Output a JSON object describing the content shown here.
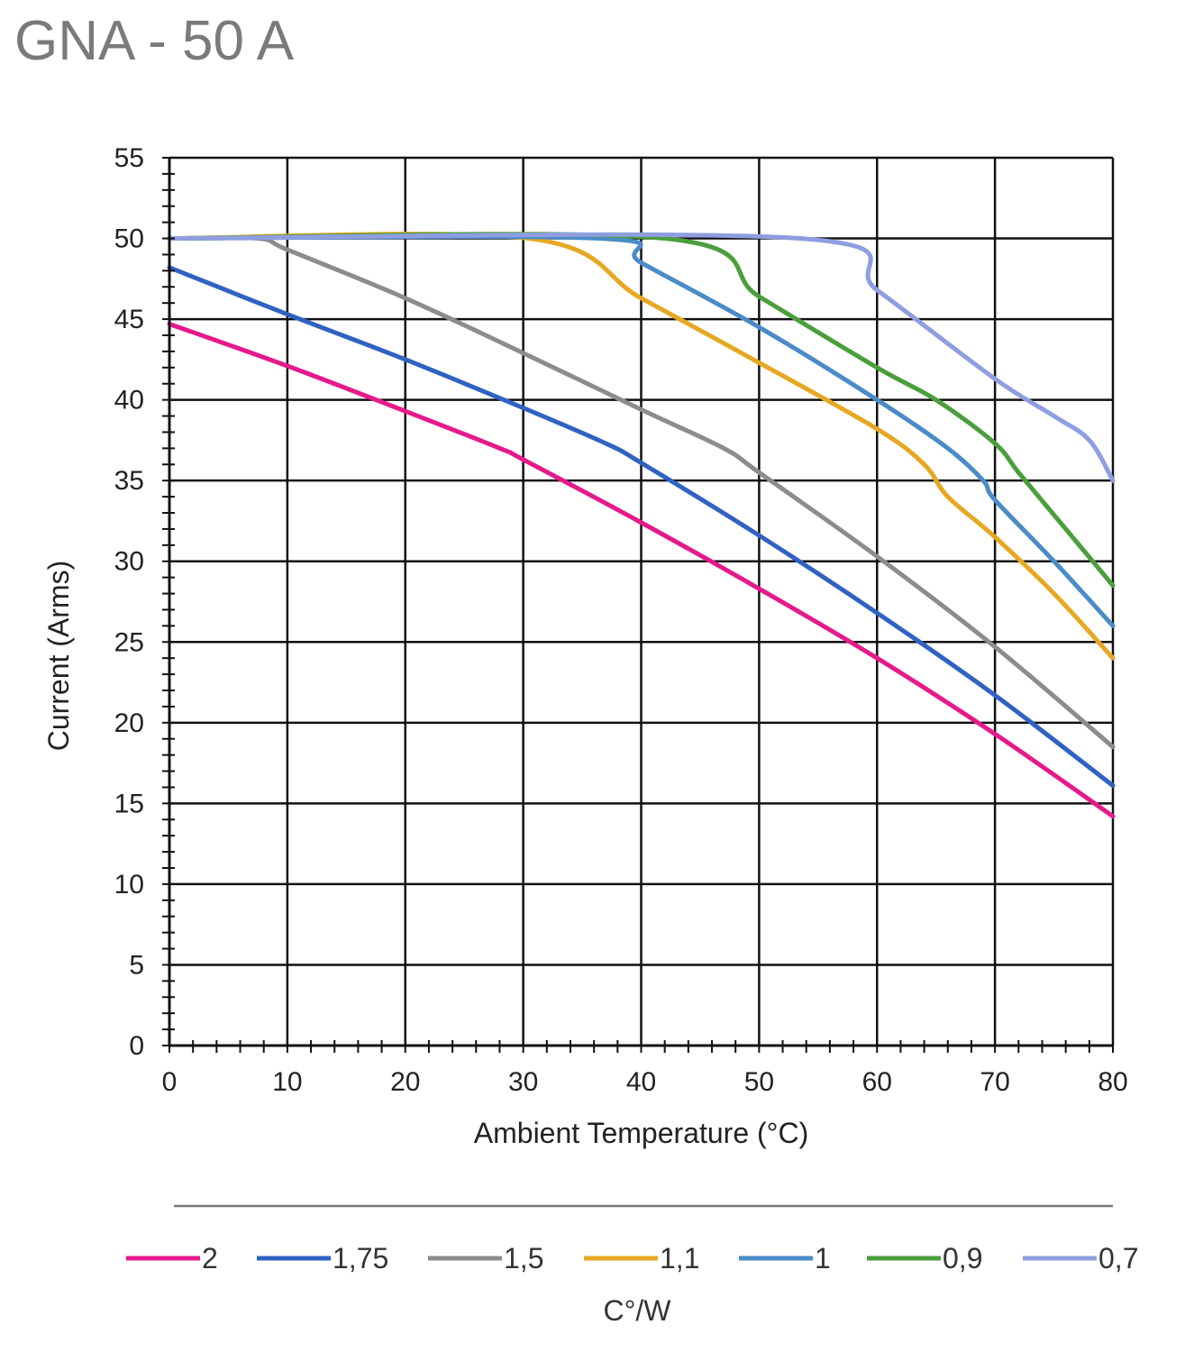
{
  "title": "GNA - 50 A",
  "chart_data": {
    "type": "line",
    "title": "GNA - 50 A",
    "xlabel": "Ambient Temperature (°C)",
    "ylabel": "Current (Arms)",
    "xlim": [
      0,
      80
    ],
    "ylim": [
      0,
      55
    ],
    "xticks": [
      0,
      10,
      20,
      30,
      40,
      50,
      60,
      70,
      80
    ],
    "yticks": [
      0,
      5,
      10,
      15,
      20,
      25,
      30,
      35,
      40,
      45,
      50,
      55
    ],
    "grid": true,
    "legend_position": "bottom",
    "legend_title": "C°/W",
    "series": [
      {
        "name": "2",
        "color": "#e6198c",
        "points": [
          [
            0,
            44.7
          ],
          [
            10,
            42.1
          ],
          [
            20,
            39.3
          ],
          [
            28,
            37
          ],
          [
            30,
            36.3
          ],
          [
            40,
            32.4
          ],
          [
            50,
            28.3
          ],
          [
            60,
            24
          ],
          [
            70,
            19.3
          ],
          [
            80,
            14.2
          ]
        ]
      },
      {
        "name": "1,75",
        "color": "#2f62c2",
        "points": [
          [
            0,
            48.2
          ],
          [
            10,
            45.3
          ],
          [
            20,
            42.5
          ],
          [
            30,
            39.5
          ],
          [
            37,
            37.3
          ],
          [
            40,
            36.1
          ],
          [
            50,
            31.6
          ],
          [
            60,
            26.8
          ],
          [
            70,
            21.7
          ],
          [
            80,
            16.1
          ]
        ]
      },
      {
        "name": "1,5",
        "color": "#8c8c8c",
        "points": [
          [
            0,
            50
          ],
          [
            7.5,
            50
          ],
          [
            10,
            49.3
          ],
          [
            20,
            46.3
          ],
          [
            30,
            42.9
          ],
          [
            40,
            39.4
          ],
          [
            47,
            37
          ],
          [
            50,
            35.5
          ],
          [
            60,
            30.3
          ],
          [
            70,
            24.7
          ],
          [
            80,
            18.5
          ]
        ]
      },
      {
        "name": "1,1",
        "color": "#e6a822",
        "points": [
          [
            0,
            50
          ],
          [
            30.5,
            50
          ],
          [
            40,
            46.3
          ],
          [
            50,
            42.3
          ],
          [
            60,
            38.2
          ],
          [
            64,
            36
          ],
          [
            66,
            34
          ],
          [
            70,
            31.5
          ],
          [
            75,
            28
          ],
          [
            80,
            24
          ]
        ]
      },
      {
        "name": "1",
        "color": "#4a8bc8",
        "points": [
          [
            0,
            50
          ],
          [
            36.5,
            50
          ],
          [
            40,
            48.5
          ],
          [
            50,
            44.5
          ],
          [
            60,
            40
          ],
          [
            66,
            37
          ],
          [
            69,
            35
          ],
          [
            70,
            33.8
          ],
          [
            75,
            30
          ],
          [
            80,
            26
          ]
        ]
      },
      {
        "name": "0,9",
        "color": "#4b9e3c",
        "points": [
          [
            0,
            50
          ],
          [
            42,
            50
          ],
          [
            50,
            46.4
          ],
          [
            60,
            42
          ],
          [
            65,
            40
          ],
          [
            70,
            37.3
          ],
          [
            72,
            35.5
          ],
          [
            76,
            32
          ],
          [
            80,
            28.5
          ]
        ]
      },
      {
        "name": "0,7",
        "color": "#8e9ee0",
        "points": [
          [
            0,
            50
          ],
          [
            53.5,
            50
          ],
          [
            60,
            46.8
          ],
          [
            70,
            41.3
          ],
          [
            75,
            39
          ],
          [
            78,
            37.5
          ],
          [
            80,
            35
          ]
        ]
      }
    ]
  }
}
